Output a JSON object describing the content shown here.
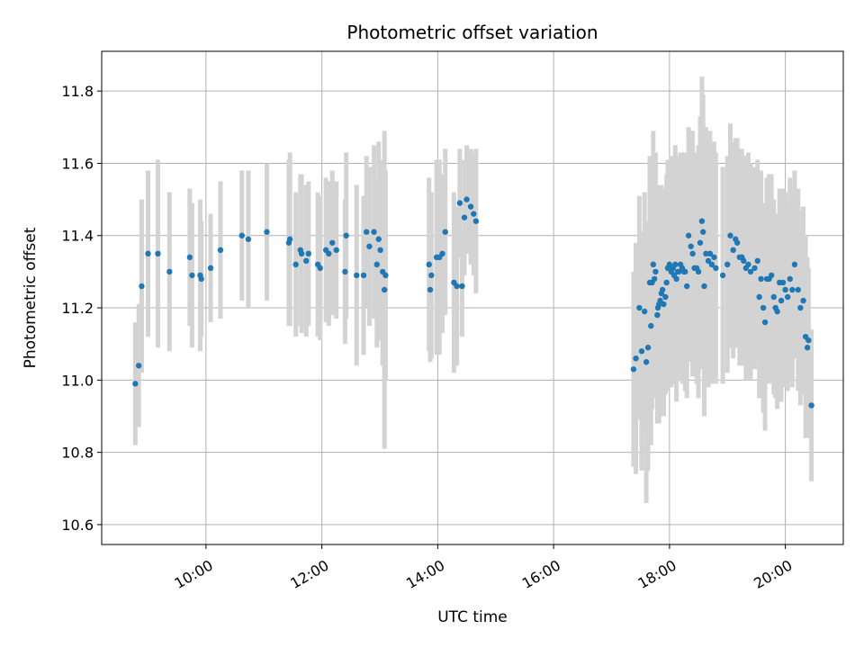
{
  "chart_data": {
    "type": "scatter",
    "title": "Photometric offset variation",
    "xlabel": "UTC time",
    "ylabel": "Photometric offset",
    "x_unit": "hours UTC",
    "xlim": [
      8.2,
      21.0
    ],
    "ylim": [
      10.545,
      11.91
    ],
    "x_ticks": [
      {
        "value": 10,
        "label": "10:00"
      },
      {
        "value": 12,
        "label": "12:00"
      },
      {
        "value": 14,
        "label": "14:00"
      },
      {
        "value": 16,
        "label": "16:00"
      },
      {
        "value": 18,
        "label": "18:00"
      },
      {
        "value": 20,
        "label": "20:00"
      }
    ],
    "y_ticks": [
      {
        "value": 10.6,
        "label": "10.6"
      },
      {
        "value": 10.8,
        "label": "10.8"
      },
      {
        "value": 11.0,
        "label": "11.0"
      },
      {
        "value": 11.2,
        "label": "11.2"
      },
      {
        "value": 11.4,
        "label": "11.4"
      },
      {
        "value": 11.6,
        "label": "11.6"
      },
      {
        "value": 11.8,
        "label": "11.8"
      }
    ],
    "grid": true,
    "marker_color": "#1f77b4",
    "errorbar_color": "#d3d3d3",
    "series": [
      {
        "points": [
          [
            8.78,
            10.99,
            0.17
          ],
          [
            8.84,
            11.04,
            0.17
          ],
          [
            8.89,
            11.26,
            0.24
          ],
          [
            9.0,
            11.35,
            0.23
          ],
          [
            9.17,
            11.35,
            0.26
          ],
          [
            9.37,
            11.3,
            0.22
          ],
          [
            9.72,
            11.34,
            0.19
          ],
          [
            9.76,
            11.29,
            0.2
          ],
          [
            9.9,
            11.29,
            0.21
          ],
          [
            9.92,
            11.28,
            0.16
          ],
          [
            10.08,
            11.31,
            0.15
          ],
          [
            10.25,
            11.36,
            0.19
          ],
          [
            10.62,
            11.4,
            0.18
          ],
          [
            10.73,
            11.39,
            0.19
          ],
          [
            11.05,
            11.41,
            0.19
          ],
          [
            11.43,
            11.38,
            0.23
          ],
          [
            11.45,
            11.39,
            0.24
          ],
          [
            11.55,
            11.32,
            0.2
          ],
          [
            11.63,
            11.36,
            0.21
          ],
          [
            11.65,
            11.35,
            0.22
          ],
          [
            11.73,
            11.33,
            0.21
          ],
          [
            11.77,
            11.35,
            0.2
          ],
          [
            11.93,
            11.32,
            0.2
          ],
          [
            11.97,
            11.31,
            0.2
          ],
          [
            12.07,
            11.36,
            0.2
          ],
          [
            12.12,
            11.35,
            0.2
          ],
          [
            12.18,
            11.38,
            0.2
          ],
          [
            12.25,
            11.36,
            0.19
          ],
          [
            12.42,
            11.4,
            0.23
          ],
          [
            12.4,
            11.3,
            0.2
          ],
          [
            12.6,
            11.29,
            0.25
          ],
          [
            12.72,
            11.29,
            0.22
          ],
          [
            12.77,
            11.41,
            0.21
          ],
          [
            12.82,
            11.37,
            0.22
          ],
          [
            12.9,
            11.41,
            0.24
          ],
          [
            12.95,
            11.32,
            0.23
          ],
          [
            12.98,
            11.39,
            0.27
          ],
          [
            13.01,
            11.36,
            0.25
          ],
          [
            13.05,
            11.3,
            0.26
          ],
          [
            13.08,
            11.25,
            0.44
          ],
          [
            13.1,
            11.29,
            0.29
          ],
          [
            13.85,
            11.32,
            0.24
          ],
          [
            13.87,
            11.25,
            0.2
          ],
          [
            13.89,
            11.29,
            0.23
          ],
          [
            13.98,
            11.34,
            0.27
          ],
          [
            14.03,
            11.34,
            0.27
          ],
          [
            14.08,
            11.35,
            0.22
          ],
          [
            14.13,
            11.41,
            0.23
          ],
          [
            14.28,
            11.27,
            0.25
          ],
          [
            14.33,
            11.26,
            0.22
          ],
          [
            14.38,
            11.49,
            0.15
          ],
          [
            14.42,
            11.26,
            0.14
          ],
          [
            14.46,
            11.45,
            0.16
          ],
          [
            14.5,
            11.5,
            0.15
          ],
          [
            14.57,
            11.48,
            0.16
          ],
          [
            14.62,
            11.46,
            0.17
          ],
          [
            14.66,
            11.44,
            0.2
          ],
          [
            17.38,
            11.03,
            0.27
          ],
          [
            17.42,
            11.06,
            0.32
          ],
          [
            17.48,
            11.2,
            0.31
          ],
          [
            17.52,
            11.08,
            0.33
          ],
          [
            17.57,
            11.19,
            0.33
          ],
          [
            17.6,
            11.05,
            0.39
          ],
          [
            17.63,
            11.09,
            0.34
          ],
          [
            17.66,
            11.27,
            0.35
          ],
          [
            17.68,
            11.15,
            0.33
          ],
          [
            17.7,
            11.27,
            0.35
          ],
          [
            17.72,
            11.32,
            0.37
          ],
          [
            17.74,
            11.28,
            0.3
          ],
          [
            17.76,
            11.3,
            0.33
          ],
          [
            17.79,
            11.18,
            0.3
          ],
          [
            17.8,
            11.2,
            0.28
          ],
          [
            17.82,
            11.21,
            0.33
          ],
          [
            17.84,
            11.22,
            0.32
          ],
          [
            17.86,
            11.24,
            0.3
          ],
          [
            17.88,
            11.25,
            0.28
          ],
          [
            17.9,
            11.21,
            0.31
          ],
          [
            17.93,
            11.23,
            0.27
          ],
          [
            17.95,
            11.27,
            0.3
          ],
          [
            17.97,
            11.31,
            0.3
          ],
          [
            18.0,
            11.32,
            0.28
          ],
          [
            18.03,
            11.3,
            0.32
          ],
          [
            18.06,
            11.31,
            0.29
          ],
          [
            18.08,
            11.29,
            0.3
          ],
          [
            18.1,
            11.32,
            0.33
          ],
          [
            18.12,
            11.28,
            0.34
          ],
          [
            18.14,
            11.3,
            0.3
          ],
          [
            18.16,
            11.3,
            0.3
          ],
          [
            18.19,
            11.32,
            0.31
          ],
          [
            18.22,
            11.31,
            0.32
          ],
          [
            18.25,
            11.3,
            0.3
          ],
          [
            18.27,
            11.3,
            0.33
          ],
          [
            18.3,
            11.26,
            0.31
          ],
          [
            18.33,
            11.4,
            0.3
          ],
          [
            18.37,
            11.37,
            0.32
          ],
          [
            18.4,
            11.35,
            0.34
          ],
          [
            18.43,
            11.31,
            0.29
          ],
          [
            18.47,
            11.31,
            0.32
          ],
          [
            18.5,
            11.3,
            0.35
          ],
          [
            18.53,
            11.38,
            0.35
          ],
          [
            18.56,
            11.44,
            0.4
          ],
          [
            18.58,
            11.41,
            0.38
          ],
          [
            18.6,
            11.26,
            0.36
          ],
          [
            18.63,
            11.35,
            0.35
          ],
          [
            18.67,
            11.33,
            0.35
          ],
          [
            18.7,
            11.35,
            0.34
          ],
          [
            18.73,
            11.32,
            0.33
          ],
          [
            18.77,
            11.34,
            0.32
          ],
          [
            18.8,
            11.31,
            0.32
          ],
          [
            18.92,
            11.29,
            0.3
          ],
          [
            19.0,
            11.32,
            0.3
          ],
          [
            19.05,
            11.4,
            0.31
          ],
          [
            19.1,
            11.36,
            0.3
          ],
          [
            19.14,
            11.39,
            0.28
          ],
          [
            19.17,
            11.38,
            0.29
          ],
          [
            19.21,
            11.34,
            0.3
          ],
          [
            19.25,
            11.34,
            0.3
          ],
          [
            19.28,
            11.33,
            0.29
          ],
          [
            19.32,
            11.31,
            0.31
          ],
          [
            19.36,
            11.32,
            0.31
          ],
          [
            19.4,
            11.3,
            0.3
          ],
          [
            19.47,
            11.31,
            0.28
          ],
          [
            19.52,
            11.33,
            0.28
          ],
          [
            19.55,
            11.23,
            0.28
          ],
          [
            19.58,
            11.28,
            0.3
          ],
          [
            19.62,
            11.2,
            0.29
          ],
          [
            19.65,
            11.16,
            0.3
          ],
          [
            19.68,
            11.28,
            0.28
          ],
          [
            19.72,
            11.28,
            0.29
          ],
          [
            19.76,
            11.29,
            0.28
          ],
          [
            19.8,
            11.23,
            0.27
          ],
          [
            19.83,
            11.2,
            0.25
          ],
          [
            19.86,
            11.19,
            0.27
          ],
          [
            19.9,
            11.27,
            0.26
          ],
          [
            19.93,
            11.22,
            0.28
          ],
          [
            19.96,
            11.27,
            0.26
          ],
          [
            20.0,
            11.25,
            0.27
          ],
          [
            20.04,
            11.23,
            0.26
          ],
          [
            20.08,
            11.28,
            0.28
          ],
          [
            20.12,
            11.25,
            0.27
          ],
          [
            20.16,
            11.32,
            0.26
          ],
          [
            20.22,
            11.25,
            0.28
          ],
          [
            20.26,
            11.2,
            0.27
          ],
          [
            20.31,
            11.22,
            0.26
          ],
          [
            20.35,
            11.12,
            0.28
          ],
          [
            20.38,
            11.09,
            0.25
          ],
          [
            20.4,
            11.11,
            0.2
          ],
          [
            20.45,
            10.93,
            0.21
          ]
        ]
      }
    ]
  }
}
